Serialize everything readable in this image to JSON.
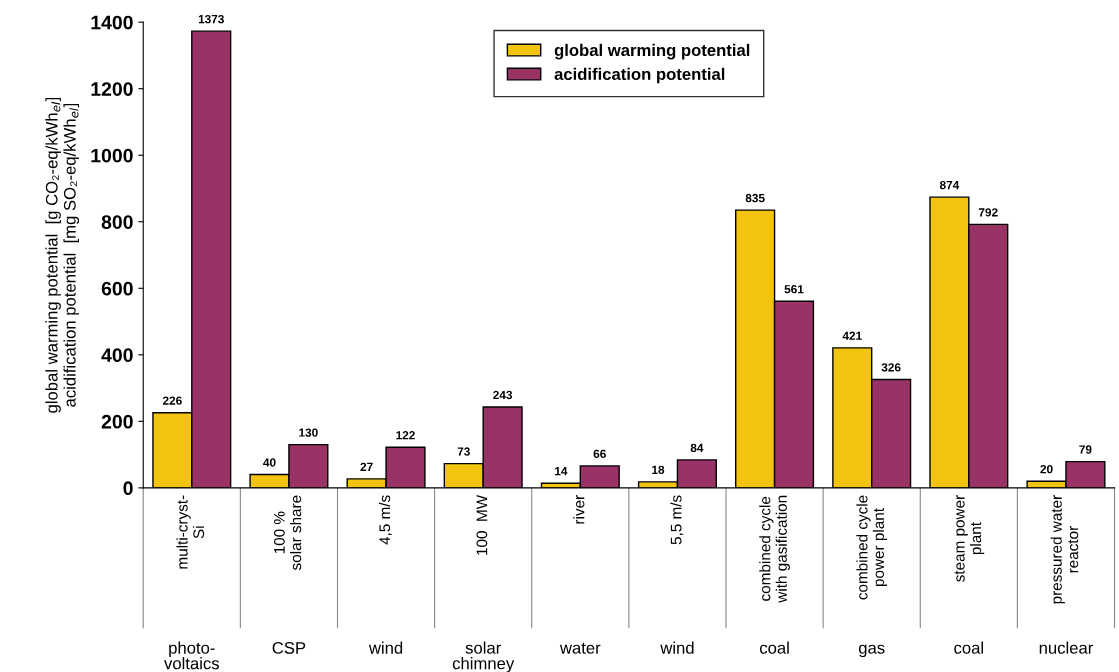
{
  "chart_data": {
    "type": "bar",
    "ylabel": "global warming potential  [g CO₂-eq/kWh$_{el}$]\nacidification potential  [mg SO₂-eq/kWh$_{el}$]",
    "categories": [
      "multi-cryst-\nSi",
      "100 %\nsolar share",
      "4,5 m/s",
      "100  MW",
      "river",
      "5,5 m/s",
      "combined cycle\nwith gasification",
      "combined cycle\npower plant",
      "steam power\nplant",
      "pressured water\nreactor"
    ],
    "series": [
      {
        "name": "global warming potential",
        "color": "#f2c40f",
        "values": [
          226,
          40,
          27,
          73,
          14,
          18,
          835,
          421,
          874,
          20
        ]
      },
      {
        "name": "acidification potential",
        "color": "#993366",
        "values": [
          1373,
          130,
          122,
          243,
          66,
          84,
          561,
          326,
          792,
          79
        ]
      }
    ],
    "annotations": [
      "photo-\nvoltaics",
      "CSP",
      "wind",
      "solar\nchimney",
      "water",
      "wind",
      "coal",
      "gas",
      "coal",
      "nuclear"
    ],
    "ylim": [
      0,
      1400
    ],
    "yticks": [
      0,
      200,
      400,
      600,
      800,
      1000,
      1200,
      1400
    ],
    "data_labels": true,
    "legend": "top",
    "grid": false
  }
}
